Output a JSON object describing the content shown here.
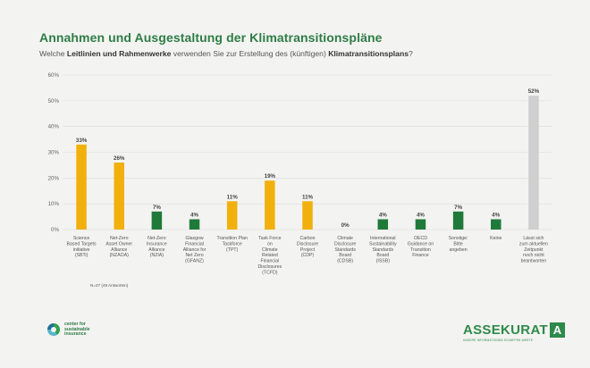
{
  "header": {
    "title": "Annahmen und Ausgestaltung der Klimatransitionspläne",
    "subtitle_pre": "Welche ",
    "subtitle_b1": "Leitlinien und Rahmenwerke",
    "subtitle_mid": " verwenden Sie zur Erstellung des (künftigen) ",
    "subtitle_b2": "Klimatransitionsplans",
    "subtitle_post": "?"
  },
  "chart_data": {
    "type": "bar",
    "ylim": [
      0,
      60
    ],
    "yticks": [
      "0%",
      "10%",
      "20%",
      "30%",
      "40%",
      "50%",
      "60%"
    ],
    "colors": {
      "orange": "#f1b00c",
      "green": "#1f7a3a",
      "gray": "#cfcfcf"
    },
    "categories": [
      {
        "label": [
          "Science",
          "Based Targets",
          "initiative",
          "(SBTi)"
        ],
        "value": 33,
        "display": "33%",
        "color": "orange"
      },
      {
        "label": [
          "Net-Zero",
          "Asset Owner",
          "Alliance",
          "(NZAOA)"
        ],
        "value": 26,
        "display": "26%",
        "color": "orange"
      },
      {
        "label": [
          "Net-Zero",
          "Insurance",
          "Alliance",
          "(NZIA)"
        ],
        "value": 7,
        "display": "7%",
        "color": "green"
      },
      {
        "label": [
          "Glasgow",
          "Financial",
          "Alliance for",
          "Net Zero",
          "(GFANZ)"
        ],
        "value": 4,
        "display": "4%",
        "color": "green"
      },
      {
        "label": [
          "Transition Plan",
          "Taskforce",
          "(TPT)"
        ],
        "value": 11,
        "display": "11%",
        "color": "orange"
      },
      {
        "label": [
          "Task Force",
          "on",
          "Climate",
          "Related",
          "Financial",
          "Disclosures",
          "(TCFD)"
        ],
        "value": 19,
        "display": "19%",
        "color": "orange"
      },
      {
        "label": [
          "Carbon",
          "Disclosure",
          "Project",
          "(CDP)"
        ],
        "value": 11,
        "display": "11%",
        "color": "orange"
      },
      {
        "label": [
          "Climate",
          "Disclosure",
          "Standards",
          "Board",
          "(CDSB)"
        ],
        "value": 0,
        "display": "0%",
        "color": "green"
      },
      {
        "label": [
          "International",
          "Sustainability",
          "Standards",
          "Board",
          "(ISSB)"
        ],
        "value": 4,
        "display": "4%",
        "color": "green"
      },
      {
        "label": [
          "OECD",
          "Guidance on",
          "Transition",
          "Finance"
        ],
        "value": 4,
        "display": "4%",
        "color": "green"
      },
      {
        "label": [
          "Sonstige:",
          "Bitte",
          "angeben"
        ],
        "value": 7,
        "display": "7%",
        "color": "green"
      },
      {
        "label": [
          "Keine"
        ],
        "value": 4,
        "display": "4%",
        "color": "green"
      },
      {
        "label": [
          "Lässt sich",
          "zum aktuellen",
          "Zeitpunkt",
          "noch nicht",
          "beantworten"
        ],
        "value": 52,
        "display": "52%",
        "color": "gray"
      }
    ]
  },
  "note": "N=27 (49 Antworten)",
  "logos": {
    "left_lines": [
      "center for",
      "sustainable",
      "insurance"
    ],
    "right_word": "ASSEKURAT",
    "right_box": "A",
    "right_tag": "UNSERE INFORMATIONEN SCHAFFEN WERTE"
  }
}
